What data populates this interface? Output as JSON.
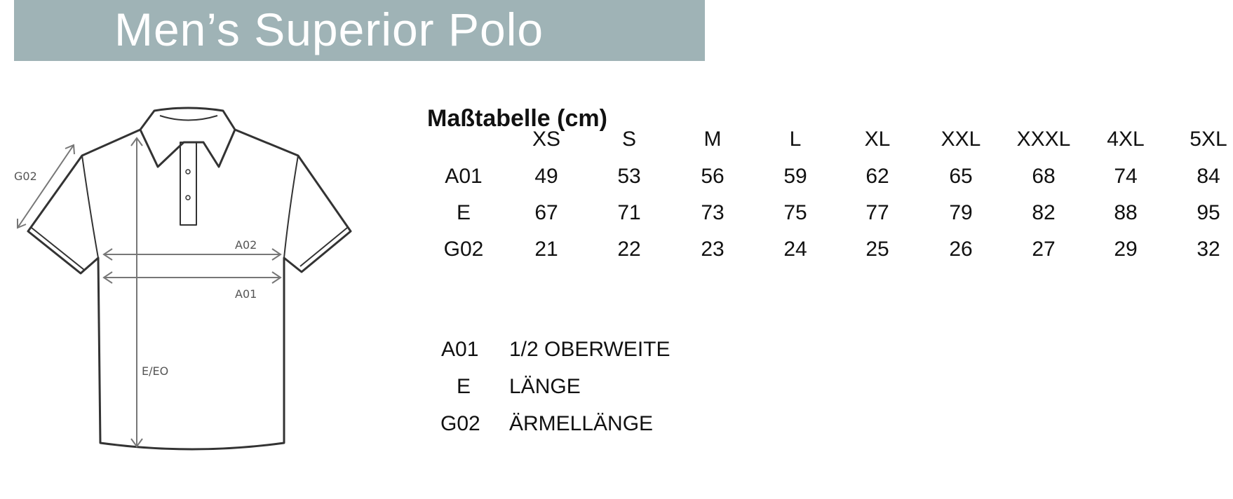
{
  "header": {
    "title": "Men’s Superior Polo",
    "background_color": "#9fb3b6"
  },
  "diagram": {
    "labels": {
      "sleeve": "G02",
      "chest_upper": "A02",
      "chest": "A01",
      "length": "E/EO"
    }
  },
  "table": {
    "title": "Maßtabelle (cm)",
    "sizes": [
      "XS",
      "S",
      "M",
      "L",
      "XL",
      "XXL",
      "XXXL",
      "4XL",
      "5XL"
    ],
    "rows": [
      {
        "label": "A01",
        "values": [
          "49",
          "53",
          "56",
          "59",
          "62",
          "65",
          "68",
          "74",
          "84"
        ]
      },
      {
        "label": "E",
        "values": [
          "67",
          "71",
          "73",
          "75",
          "77",
          "79",
          "82",
          "88",
          "95"
        ]
      },
      {
        "label": "G02",
        "values": [
          "21",
          "22",
          "23",
          "24",
          "25",
          "26",
          "27",
          "29",
          "32"
        ]
      }
    ]
  },
  "legend": [
    {
      "code": "A01",
      "description": "1/2 OBERWEITE"
    },
    {
      "code": "E",
      "description": "LÄNGE"
    },
    {
      "code": "G02",
      "description": "ÄRMELLÄNGE"
    }
  ]
}
